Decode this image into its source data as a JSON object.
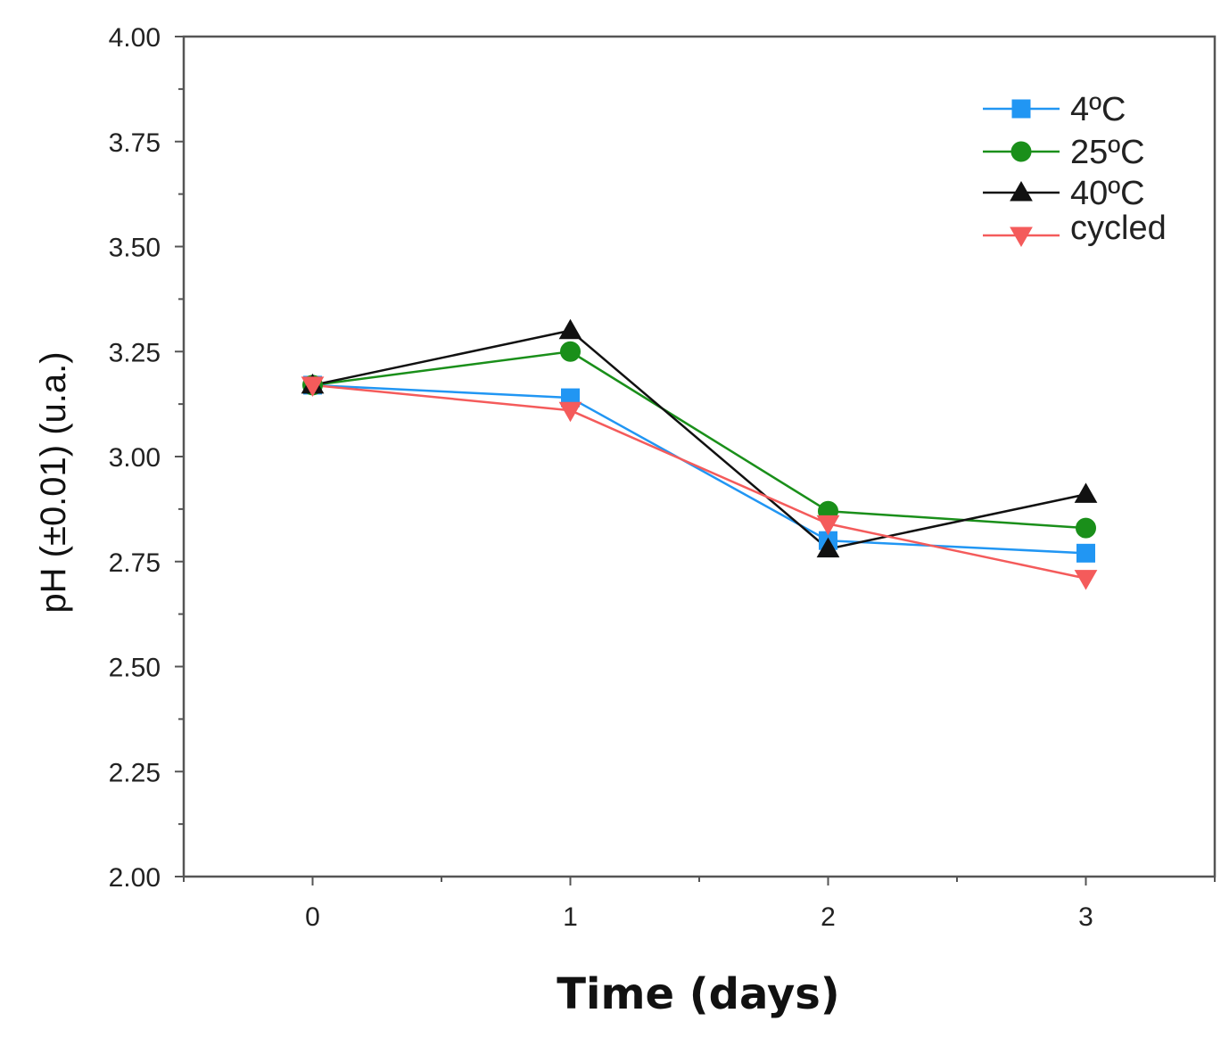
{
  "chart_data": {
    "type": "line",
    "title": "",
    "xlabel": "Time (days)",
    "ylabel": "pH (±0.01) (u.a.)",
    "x": [
      0,
      1,
      2,
      3
    ],
    "x_tick_labels": [
      "0",
      "1",
      "2",
      "3"
    ],
    "y_tick_labels": [
      "2.00",
      "2.25",
      "2.50",
      "2.75",
      "3.00",
      "3.25",
      "3.50",
      "3.75",
      "4.00"
    ],
    "xlim": [
      -0.5,
      3.5
    ],
    "ylim": [
      2.0,
      4.0
    ],
    "grid": false,
    "legend_position": "top-right",
    "series": [
      {
        "name": "4ºC",
        "marker": "square",
        "color": "#2196F3",
        "values": [
          3.17,
          3.14,
          2.8,
          2.77
        ]
      },
      {
        "name": "25ºC",
        "marker": "circle",
        "color": "#1A8F1A",
        "values": [
          3.17,
          3.25,
          2.87,
          2.83
        ]
      },
      {
        "name": "40ºC",
        "marker": "triangle-up",
        "color": "#111111",
        "values": [
          3.17,
          3.3,
          2.78,
          2.91
        ]
      },
      {
        "name": "cycled",
        "marker": "triangle-down",
        "color": "#F45B5B",
        "values": [
          3.17,
          3.11,
          2.84,
          2.71
        ]
      }
    ]
  }
}
